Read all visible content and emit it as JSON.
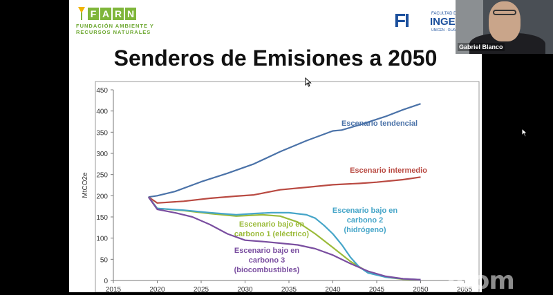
{
  "logos": {
    "farn_letters": [
      "F",
      "A",
      "R",
      "N"
    ],
    "farn_line1": "FUNDACIÓN AMBIENTE Y",
    "farn_line2": "RECURSOS NATURALES",
    "fi_mark": "FI",
    "fi_small": "FACULTAD DE",
    "fi_big": "INGEN",
    "fi_tiny": "UNICEN · OLAVAR"
  },
  "slide": {
    "title": "Senderos de Emisiones a 2050"
  },
  "video": {
    "participant_name": "Gabriel Blanco"
  },
  "watermark": "zoom",
  "colors": {
    "tendencial": "#4a72a8",
    "intermedio": "#b94a42",
    "bajo1": "#9bbb3a",
    "bajo2": "#45a5c8",
    "bajo3": "#7a4ea0"
  },
  "chart_data": {
    "type": "line",
    "ylabel": "MtCO2e",
    "xlim": [
      2015,
      2055
    ],
    "ylim": [
      0,
      450
    ],
    "xticks": [
      "2015",
      "2020",
      "2025",
      "2030",
      "2035",
      "2040",
      "2045",
      "2050",
      "2055"
    ],
    "yticks": [
      "0",
      "50",
      "100",
      "150",
      "200",
      "250",
      "300",
      "350",
      "400",
      "450"
    ],
    "grid": false,
    "series": [
      {
        "key": "tendencial",
        "labels": [
          "Escenario tendencial"
        ],
        "x": [
          2019,
          2020,
          2022,
          2025,
          2028,
          2031,
          2034,
          2037,
          2040,
          2041,
          2043,
          2046,
          2048,
          2050
        ],
        "y": [
          197,
          200,
          210,
          233,
          253,
          275,
          304,
          330,
          353,
          355,
          367,
          387,
          403,
          417
        ]
      },
      {
        "key": "intermedio",
        "labels": [
          "Escenario intermedio"
        ],
        "x": [
          2019,
          2020,
          2023,
          2026,
          2029,
          2031,
          2034,
          2037,
          2040,
          2043,
          2045,
          2048,
          2050
        ],
        "y": [
          197,
          183,
          187,
          194,
          199,
          202,
          214,
          220,
          226,
          229,
          232,
          238,
          244
        ]
      },
      {
        "key": "bajo1",
        "labels": [
          "Escenario bajo en",
          "carbono 1 (eléctrico)"
        ],
        "x": [
          2019,
          2020,
          2023,
          2026,
          2029,
          2032,
          2034,
          2036,
          2038,
          2040,
          2042,
          2044,
          2046,
          2048,
          2050
        ],
        "y": [
          197,
          170,
          165,
          158,
          152,
          155,
          152,
          138,
          110,
          78,
          45,
          20,
          8,
          3,
          2
        ]
      },
      {
        "key": "bajo2",
        "labels": [
          "Escenario bajo en",
          "carbono 2",
          "(hidrógeno)"
        ],
        "x": [
          2019,
          2020,
          2023,
          2026,
          2029,
          2031,
          2033,
          2035,
          2037,
          2038,
          2039,
          2040,
          2041,
          2042,
          2043,
          2044,
          2046,
          2048,
          2050
        ],
        "y": [
          197,
          170,
          166,
          160,
          155,
          158,
          160,
          160,
          155,
          147,
          130,
          110,
          85,
          55,
          32,
          18,
          8,
          4,
          2
        ]
      },
      {
        "key": "bajo3",
        "labels": [
          "Escenario bajo en",
          "carbono 3",
          "(biocombustibles)"
        ],
        "x": [
          2019,
          2020,
          2022,
          2024,
          2026,
          2028,
          2030,
          2032,
          2034,
          2036,
          2038,
          2040,
          2042,
          2044,
          2046,
          2048,
          2050
        ],
        "y": [
          197,
          168,
          160,
          150,
          132,
          110,
          95,
          92,
          88,
          84,
          75,
          60,
          40,
          22,
          10,
          4,
          2
        ]
      }
    ]
  }
}
